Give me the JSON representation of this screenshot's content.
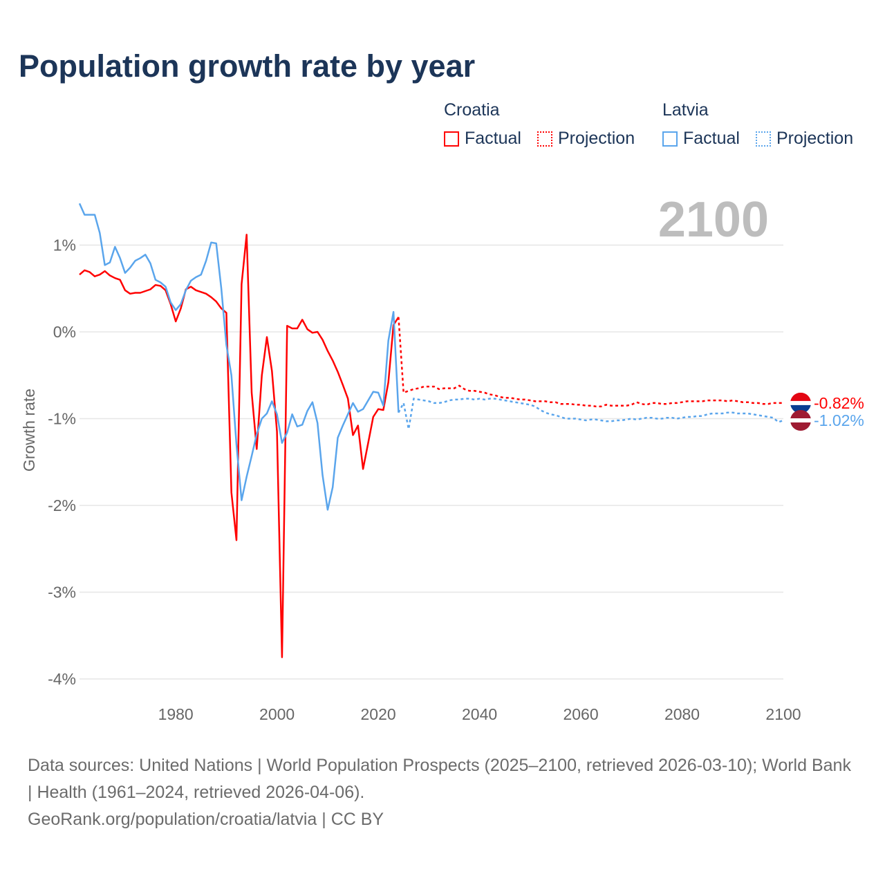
{
  "chart_data": {
    "type": "line",
    "title": "Population growth rate by year",
    "ylabel": "Growth rate",
    "xlabel": "",
    "xlim": [
      1961,
      2100
    ],
    "ylim": [
      -4,
      1.5
    ],
    "x_ticks": [
      1980,
      2000,
      2020,
      2040,
      2060,
      2080,
      2100
    ],
    "x_tick_labels": [
      "1980",
      "2000",
      "2020",
      "2040",
      "2060",
      "2080",
      "2100"
    ],
    "y_ticks": [
      1,
      0,
      -1,
      -2,
      -3,
      -4
    ],
    "y_tick_labels": [
      "1%",
      "0%",
      "-1%",
      "-2%",
      "-3%",
      "-4%"
    ],
    "grid": true,
    "year_label": "2100",
    "legend_position": "top-right",
    "series": [
      {
        "name": "Croatia",
        "color": "#ff0000",
        "flag_colors": [
          "#e30613",
          "#ffffff",
          "#0a3d91"
        ],
        "end_label": "-0.82%",
        "factual_start": 1961,
        "factual": [
          0.66,
          0.71,
          0.69,
          0.64,
          0.66,
          0.7,
          0.65,
          0.62,
          0.6,
          0.48,
          0.44,
          0.45,
          0.45,
          0.47,
          0.49,
          0.54,
          0.53,
          0.48,
          0.32,
          0.12,
          0.27,
          0.49,
          0.52,
          0.48,
          0.46,
          0.44,
          0.4,
          0.35,
          0.27,
          0.22,
          -1.85,
          -2.4,
          0.55,
          1.12,
          -0.7,
          -1.35,
          -0.5,
          -0.06,
          -0.45,
          -1.15,
          -3.75,
          0.07,
          0.04,
          0.04,
          0.14,
          0.03,
          -0.01,
          0.0,
          -0.09,
          -0.22,
          -0.33,
          -0.46,
          -0.61,
          -0.77,
          -1.19,
          -1.08,
          -1.58,
          -1.28,
          -0.98,
          -0.89,
          -0.9,
          -0.58,
          0.08,
          0.17
        ],
        "projection_start": 2025,
        "projection": [
          -0.7,
          -0.68,
          -0.66,
          -0.65,
          -0.63,
          -0.63,
          -0.63,
          -0.66,
          -0.65,
          -0.65,
          -0.65,
          -0.62,
          -0.66,
          -0.68,
          -0.68,
          -0.69,
          -0.7,
          -0.72,
          -0.73,
          -0.75,
          -0.76,
          -0.76,
          -0.77,
          -0.78,
          -0.78,
          -0.79,
          -0.8,
          -0.8,
          -0.8,
          -0.81,
          -0.81,
          -0.83,
          -0.83,
          -0.83,
          -0.84,
          -0.84,
          -0.85,
          -0.85,
          -0.86,
          -0.86,
          -0.84,
          -0.85,
          -0.85,
          -0.85,
          -0.85,
          -0.84,
          -0.81,
          -0.83,
          -0.84,
          -0.82,
          -0.82,
          -0.83,
          -0.83,
          -0.82,
          -0.82,
          -0.81,
          -0.8,
          -0.8,
          -0.8,
          -0.8,
          -0.79,
          -0.79,
          -0.79,
          -0.79,
          -0.8,
          -0.79,
          -0.8,
          -0.81,
          -0.81,
          -0.82,
          -0.82,
          -0.83,
          -0.83,
          -0.82,
          -0.82,
          -0.82
        ]
      },
      {
        "name": "Latvia",
        "color": "#5aa5ec",
        "flag_colors": [
          "#9e1b32",
          "#ffffff",
          "#9e1b32"
        ],
        "end_label": "-1.02%",
        "factual_start": 1961,
        "factual": [
          1.48,
          1.35,
          1.35,
          1.35,
          1.14,
          0.77,
          0.8,
          0.98,
          0.85,
          0.68,
          0.74,
          0.82,
          0.85,
          0.89,
          0.79,
          0.6,
          0.57,
          0.52,
          0.34,
          0.25,
          0.32,
          0.48,
          0.59,
          0.63,
          0.66,
          0.82,
          1.03,
          1.02,
          0.5,
          -0.15,
          -0.5,
          -1.3,
          -1.94,
          -1.67,
          -1.43,
          -1.18,
          -1.0,
          -0.94,
          -0.8,
          -0.95,
          -1.28,
          -1.16,
          -0.95,
          -1.09,
          -1.07,
          -0.91,
          -0.81,
          -1.05,
          -1.65,
          -2.05,
          -1.79,
          -1.22,
          -1.08,
          -0.95,
          -0.82,
          -0.92,
          -0.89,
          -0.79,
          -0.69,
          -0.7,
          -0.85,
          -0.1,
          0.23,
          -0.93
        ],
        "projection_start": 2025,
        "projection": [
          -0.82,
          -1.12,
          -0.77,
          -0.78,
          -0.79,
          -0.8,
          -0.82,
          -0.82,
          -0.81,
          -0.79,
          -0.78,
          -0.78,
          -0.77,
          -0.77,
          -0.78,
          -0.77,
          -0.78,
          -0.77,
          -0.77,
          -0.78,
          -0.79,
          -0.8,
          -0.81,
          -0.82,
          -0.83,
          -0.84,
          -0.86,
          -0.9,
          -0.93,
          -0.95,
          -0.96,
          -0.98,
          -1.0,
          -1.0,
          -1.0,
          -1.01,
          -1.02,
          -1.01,
          -1.01,
          -1.02,
          -1.03,
          -1.03,
          -1.02,
          -1.02,
          -1.01,
          -1.0,
          -1.01,
          -1.0,
          -0.99,
          -0.99,
          -1.0,
          -1.0,
          -0.99,
          -0.99,
          -1.0,
          -0.99,
          -0.98,
          -0.98,
          -0.97,
          -0.97,
          -0.95,
          -0.94,
          -0.94,
          -0.94,
          -0.93,
          -0.93,
          -0.94,
          -0.94,
          -0.94,
          -0.95,
          -0.96,
          -0.97,
          -0.98,
          -0.99,
          -1.04,
          -1.02
        ]
      }
    ]
  },
  "legend": {
    "croatia": {
      "country": "Croatia",
      "factual": "Factual",
      "projection": "Projection"
    },
    "latvia": {
      "country": "Latvia",
      "factual": "Factual",
      "projection": "Projection"
    }
  },
  "footer": {
    "sources": "Data sources: United Nations | World Population Prospects (2025–2100, retrieved 2026-03-10); World Bank | Health (1961–2024, retrieved 2026-04-06).",
    "credit": "GeoRank.org/population/croatia/latvia | CC BY"
  }
}
